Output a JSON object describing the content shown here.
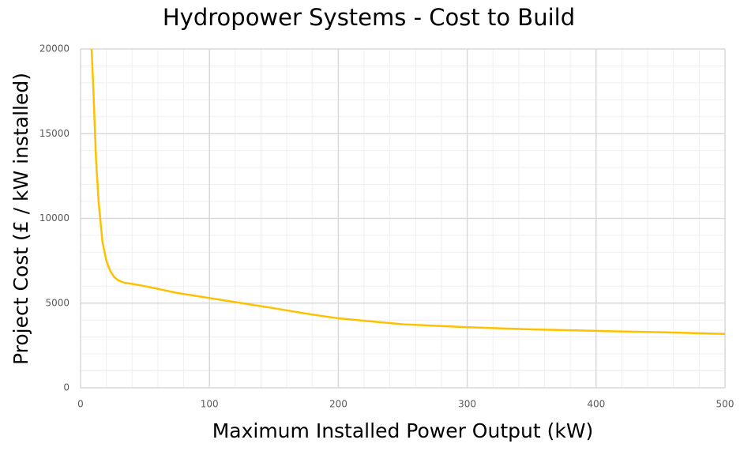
{
  "chart_data": {
    "type": "line",
    "title": "Hydropower Systems - Cost to Build",
    "x_label": "Maximum Installed Power Output (kW)",
    "y_label": "Project Cost (£ / kW installed)",
    "xlim": [
      0,
      500
    ],
    "ylim": [
      0,
      20000
    ],
    "xticks": [
      0,
      100,
      200,
      300,
      400,
      500
    ],
    "yticks": [
      0,
      5000,
      10000,
      15000,
      20000
    ],
    "grid": true,
    "minor_grid": true,
    "x": [
      8.6,
      10,
      11,
      12,
      14,
      17,
      20,
      23,
      26,
      29,
      34,
      39,
      50,
      75,
      100,
      125,
      150,
      175,
      200,
      250,
      300,
      350,
      400,
      450,
      500
    ],
    "series": [
      {
        "name": "Project Cost",
        "color": "#ffc000",
        "values": [
          20000,
          17500,
          15500,
          13500,
          11000,
          8600,
          7500,
          6900,
          6550,
          6350,
          6200,
          6150,
          6000,
          5600,
          5300,
          5000,
          4700,
          4380,
          4100,
          3750,
          3580,
          3450,
          3360,
          3280,
          3180
        ]
      }
    ]
  }
}
